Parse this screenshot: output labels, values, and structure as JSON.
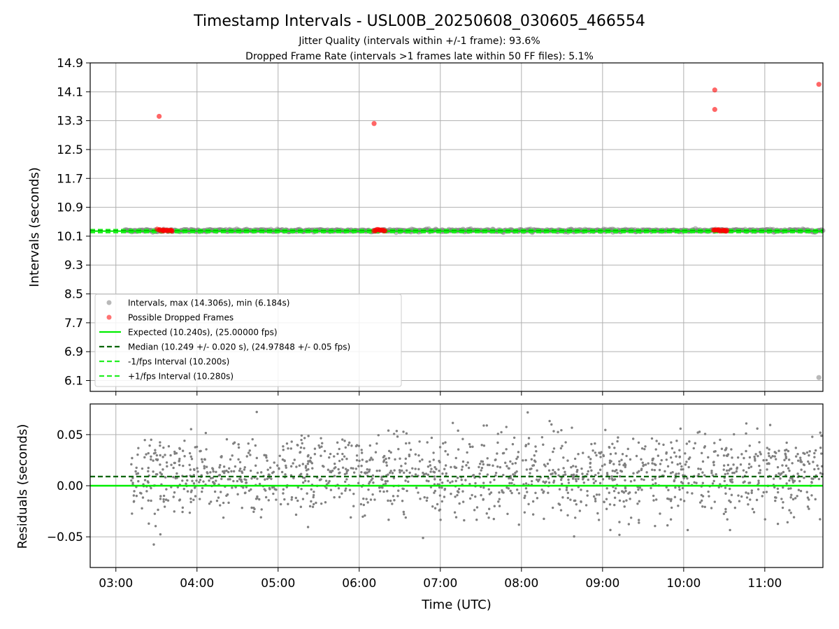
{
  "title": "Timestamp Intervals - USL00B_20250608_030605_466554",
  "subtitle_1": "Jitter Quality (intervals within +/-1 frame): 93.6%",
  "subtitle_2": "Dropped Frame Rate (intervals >1 frames late within 50 FF files): 5.1%",
  "colors": {
    "intervals": "#808080",
    "dropped": "#ff0000",
    "expected": "#00ee00",
    "median": "#006400",
    "bounds": "#22ee22",
    "grid": "#b0b0b0"
  },
  "chart_data": [
    {
      "type": "scatter",
      "xlabel": "",
      "ylabel": "Intervals (seconds)",
      "x_ticks": [
        "03:00",
        "04:00",
        "05:00",
        "06:00",
        "07:00",
        "08:00",
        "09:00",
        "10:00",
        "11:00"
      ],
      "y_ticks": [
        "6.1",
        "6.9",
        "7.7",
        "8.5",
        "9.3",
        "10.1",
        "10.9",
        "11.7",
        "12.5",
        "13.3",
        "14.1",
        "14.9"
      ],
      "xlim": [
        "02:41",
        "11:43"
      ],
      "ylim": [
        5.8,
        14.9
      ],
      "grid": true,
      "legend_position": "lower-left",
      "legend": [
        {
          "label": "Intervals, max (14.306s), min (6.184s)",
          "style": "point-gray"
        },
        {
          "label": "Possible Dropped Frames",
          "style": "point-red"
        },
        {
          "label": "Expected (10.240s), (25.00000 fps)",
          "style": "line-expected"
        },
        {
          "label": "Median (10.249 +/- 0.020 s), (24.97848 +/- 0.05 fps)",
          "style": "dash-median"
        },
        {
          "label": "-1/fps Interval (10.200s)",
          "style": "dash-bounds"
        },
        {
          "label": "+1/fps Interval (10.280s)",
          "style": "dash-bounds"
        }
      ],
      "series": [
        {
          "name": "Intervals",
          "time_range": [
            "03:06",
            "11:43"
          ],
          "value_band": [
            10.2,
            10.31
          ],
          "min_point": {
            "x": "11:40",
            "y": 6.184
          }
        },
        {
          "name": "Possible Dropped Frames",
          "points": [
            {
              "x": "03:32",
              "y": 13.42
            },
            {
              "x": "06:11",
              "y": 13.22
            },
            {
              "x": "10:23",
              "y": 14.15
            },
            {
              "x": "10:23",
              "y": 13.61
            },
            {
              "x": "11:40",
              "y": 14.306
            },
            {
              "x": "03:32",
              "y": 10.27
            },
            {
              "x": "03:35",
              "y": 10.26
            },
            {
              "x": "03:38",
              "y": 10.27
            },
            {
              "x": "03:41",
              "y": 10.26
            },
            {
              "x": "06:12",
              "y": 10.26
            },
            {
              "x": "06:15",
              "y": 10.27
            },
            {
              "x": "06:18",
              "y": 10.26
            },
            {
              "x": "10:23",
              "y": 10.27
            },
            {
              "x": "10:26",
              "y": 10.26
            },
            {
              "x": "10:29",
              "y": 10.27
            },
            {
              "x": "10:32",
              "y": 10.26
            }
          ]
        },
        {
          "name": "Expected",
          "value": 10.24
        },
        {
          "name": "Median",
          "value": 10.249
        },
        {
          "name": "-1/fps Interval",
          "value": 10.2
        },
        {
          "name": "+1/fps Interval",
          "value": 10.28
        }
      ]
    },
    {
      "type": "scatter",
      "xlabel": "Time (UTC)",
      "ylabel": "Residuals (seconds)",
      "x_ticks": [
        "03:00",
        "04:00",
        "05:00",
        "06:00",
        "07:00",
        "08:00",
        "09:00",
        "10:00",
        "11:00"
      ],
      "y_ticks": [
        "−0.05",
        "0.00",
        "0.05"
      ],
      "y_tick_values": [
        -0.05,
        0.0,
        0.05
      ],
      "xlim": [
        "02:41",
        "11:43"
      ],
      "ylim": [
        -0.08,
        0.08
      ],
      "grid": true,
      "series": [
        {
          "name": "Residuals",
          "time_range": [
            "03:11",
            "11:43"
          ],
          "value_range": [
            -0.06,
            0.073
          ],
          "approx_points": 1500
        },
        {
          "name": "Expected",
          "value": 0.0
        },
        {
          "name": "Median",
          "value": 0.009
        }
      ]
    }
  ]
}
